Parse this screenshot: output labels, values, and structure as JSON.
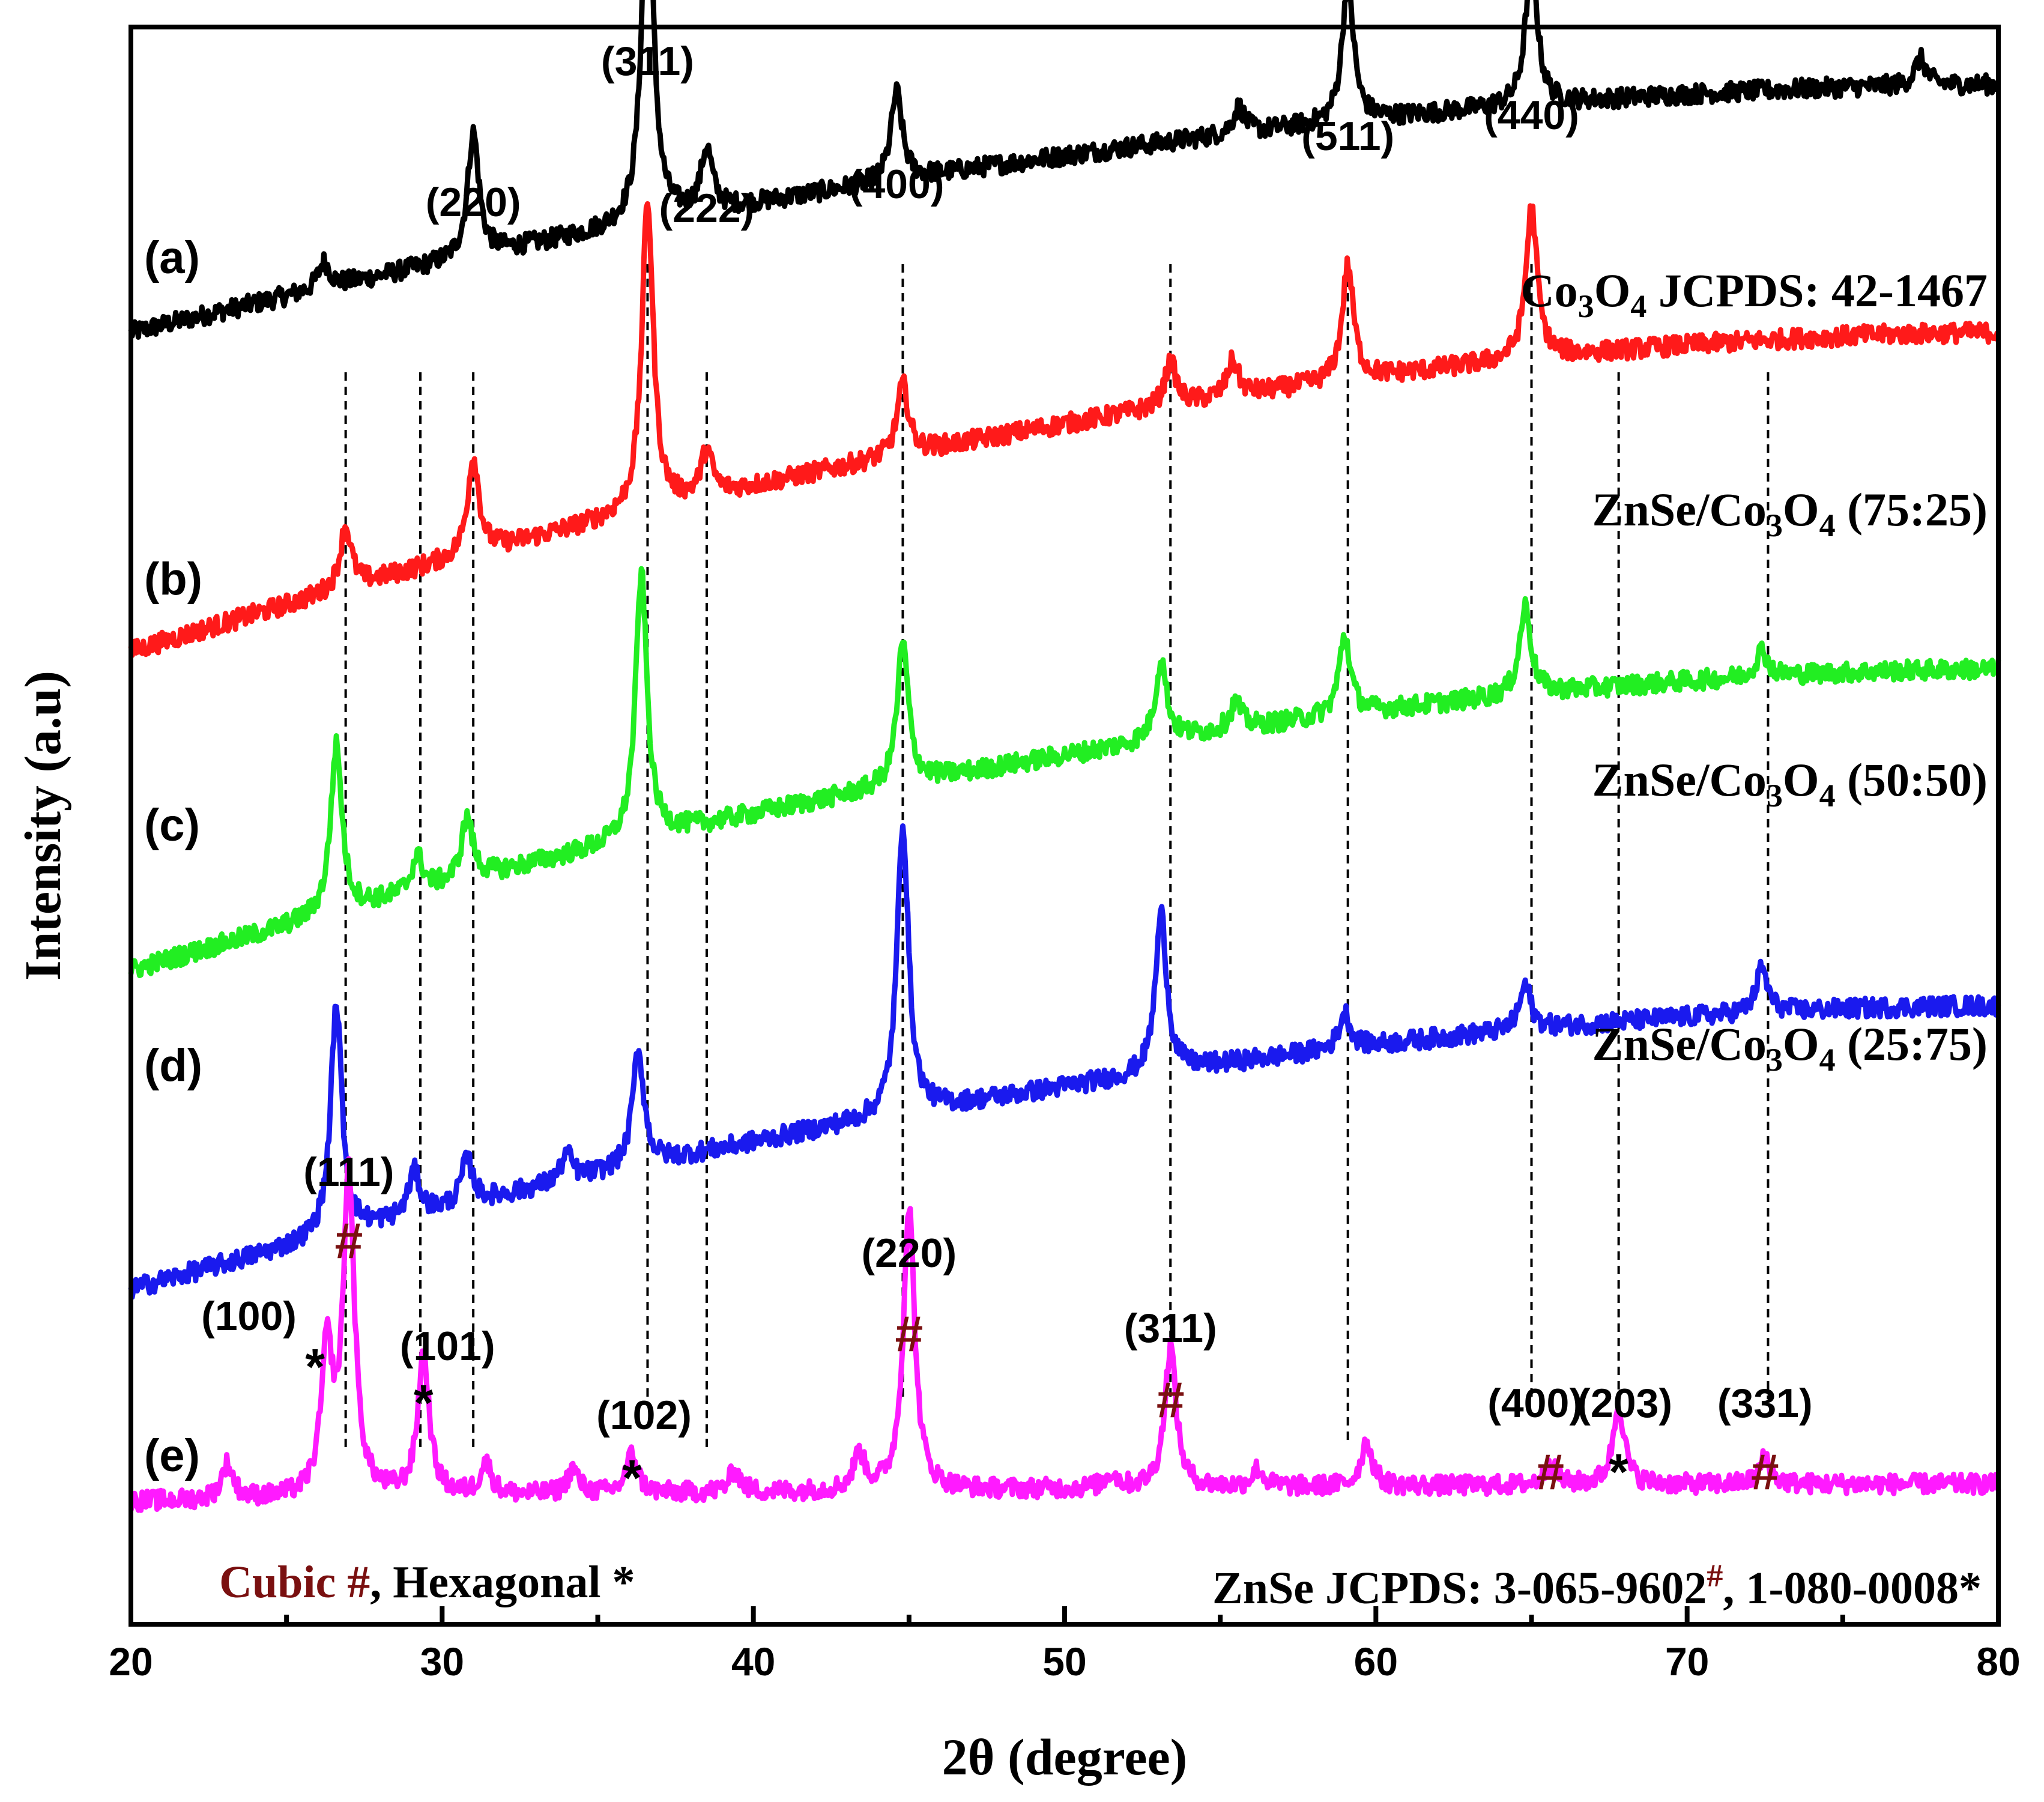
{
  "chart_data": {
    "type": "line",
    "title": "",
    "xlabel": "2θ (degree)",
    "ylabel": "Intensity (a.u)",
    "xlim": [
      20,
      80
    ],
    "xticks": [
      20,
      30,
      40,
      50,
      60,
      70,
      80
    ],
    "grid": false,
    "series": [
      {
        "id": "a",
        "label": "(a)",
        "name_prefix": "Co",
        "name_parts": [
          "3",
          "O",
          "4",
          " JCPDS: 42-1467"
        ],
        "color": "#000000",
        "baseline_start": 68,
        "baseline_end": 82,
        "peaks": [
          [
            26.2,
            1.5
          ],
          [
            31.0,
            7.0
          ],
          [
            36.6,
            20.5
          ],
          [
            38.5,
            3.5
          ],
          [
            44.6,
            5.0
          ],
          [
            55.6,
            1.5
          ],
          [
            59.1,
            8.0
          ],
          [
            65.0,
            8.5
          ],
          [
            77.5,
            1.5
          ]
        ]
      },
      {
        "id": "b",
        "label": "(b)",
        "name_prefix": "ZnSe/Co",
        "name_parts": [
          "3",
          "O",
          "4",
          " (75:25)"
        ],
        "color": "#ff1a1a",
        "baseline_start": 50,
        "baseline_end": 68,
        "peaks": [
          [
            26.9,
            3.5
          ],
          [
            31.0,
            5.5
          ],
          [
            36.6,
            17.5
          ],
          [
            38.5,
            2.5
          ],
          [
            44.8,
            4.0
          ],
          [
            53.4,
            2.5
          ],
          [
            55.4,
            2.0
          ],
          [
            59.1,
            6.5
          ],
          [
            65.0,
            8.5
          ]
        ]
      },
      {
        "id": "c",
        "label": "(c)",
        "name_prefix": "ZnSe/Co",
        "name_parts": [
          "3",
          "O",
          "4",
          " (50:50)"
        ],
        "color": "#22ee22",
        "baseline_start": 32,
        "baseline_end": 49,
        "peaks": [
          [
            26.6,
            9.5
          ],
          [
            29.2,
            2.0
          ],
          [
            30.8,
            3.5
          ],
          [
            36.4,
            15.0
          ],
          [
            44.8,
            8.0
          ],
          [
            53.1,
            4.5
          ],
          [
            55.5,
            1.5
          ],
          [
            59.0,
            4.5
          ],
          [
            64.8,
            5.0
          ],
          [
            72.4,
            1.5
          ]
        ]
      },
      {
        "id": "d",
        "label": "(d)",
        "name_prefix": "ZnSe/Co",
        "name_parts": [
          "3",
          "O",
          "4",
          " (25:75)"
        ],
        "color": "#1a1aee",
        "baseline_start": 14,
        "baseline_end": 30,
        "peaks": [
          [
            26.6,
            13.0
          ],
          [
            29.1,
            2.5
          ],
          [
            30.8,
            2.5
          ],
          [
            34.0,
            1.5
          ],
          [
            36.3,
            6.5
          ],
          [
            44.8,
            16.5
          ],
          [
            53.1,
            9.0
          ],
          [
            59.0,
            2.0
          ],
          [
            64.8,
            2.5
          ],
          [
            72.4,
            2.5
          ]
        ]
      },
      {
        "id": "e",
        "label": "(e)",
        "name": "ZnSe",
        "color": "#ff1aff",
        "baseline_start": 2,
        "baseline_end": 3,
        "peaks": [
          [
            23.1,
            2.0
          ],
          [
            26.3,
            8.0
          ],
          [
            27.0,
            18.0
          ],
          [
            29.4,
            8.0
          ],
          [
            31.4,
            1.8
          ],
          [
            34.2,
            1.4
          ],
          [
            36.1,
            2.2
          ],
          [
            39.4,
            1.2
          ],
          [
            43.4,
            2.0
          ],
          [
            45.0,
            16.0
          ],
          [
            51.5,
            0.8
          ],
          [
            53.4,
            8.0
          ],
          [
            56.2,
            1.0
          ],
          [
            59.7,
            2.5
          ],
          [
            65.6,
            1.2
          ],
          [
            67.8,
            4.5
          ],
          [
            72.5,
            1.5
          ]
        ]
      }
    ],
    "peak_labels_co3o4": [
      {
        "hkl": "(220)",
        "x": 31.0
      },
      {
        "hkl": "(311)",
        "x": 36.6
      },
      {
        "hkl": "(222)",
        "x": 38.5
      },
      {
        "hkl": "(400)",
        "x": 44.6
      },
      {
        "hkl": "(511)",
        "x": 59.1
      },
      {
        "hkl": "(440)",
        "x": 65.0
      }
    ],
    "peak_labels_znse": [
      {
        "hkl": "(111)",
        "x": 27.0,
        "phase": "cubic",
        "marker": "#"
      },
      {
        "hkl": "(100)",
        "x": 26.3,
        "phase": "hexagonal",
        "marker": "*"
      },
      {
        "hkl": "(101)",
        "x": 29.4,
        "phase": "hexagonal",
        "marker": "*"
      },
      {
        "hkl": "(102)",
        "x": 36.1,
        "phase": "hexagonal",
        "marker": "*"
      },
      {
        "hkl": "(220)",
        "x": 45.0,
        "phase": "cubic",
        "marker": "#"
      },
      {
        "hkl": "(311)",
        "x": 53.4,
        "phase": "cubic",
        "marker": "#"
      },
      {
        "hkl": "(400)",
        "x": 65.6,
        "phase": "cubic",
        "marker": "#"
      },
      {
        "hkl": "(203)",
        "x": 67.8,
        "phase": "hexagonal",
        "marker": "*"
      },
      {
        "hkl": "(331)",
        "x": 72.5,
        "phase": "cubic",
        "marker": "#"
      }
    ],
    "dashed_reference_lines_x": [
      26.9,
      29.3,
      31.0,
      36.6,
      38.5,
      44.8,
      53.4,
      59.1,
      65.0,
      67.8,
      72.6
    ],
    "legend_note": {
      "cubic_word": "Cubic ",
      "cubic_marker": "#",
      "hex_text": ", Hexagonal *"
    },
    "znse_note": {
      "text1": "ZnSe JCPDS: 3-065-9602",
      "sup1": "#",
      "text2": ", 1-080-0008*"
    }
  }
}
